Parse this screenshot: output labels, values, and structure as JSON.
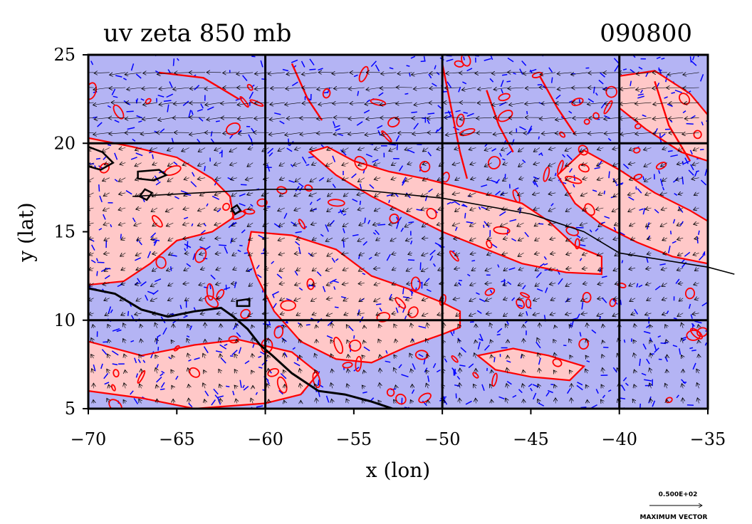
{
  "chart_data": {
    "type": "map",
    "title": "uv zeta 850 mb",
    "date_label": "090800",
    "xlabel": "x (lon)",
    "ylabel": "y (lat)",
    "xlim": [
      -70,
      -35
    ],
    "ylim": [
      5,
      25
    ],
    "x_ticks": [
      {
        "value": -70,
        "label": "−70"
      },
      {
        "value": -65,
        "label": "−65"
      },
      {
        "value": -60,
        "label": "−60"
      },
      {
        "value": -55,
        "label": "−55"
      },
      {
        "value": -50,
        "label": "−50"
      },
      {
        "value": -45,
        "label": "−45"
      },
      {
        "value": -40,
        "label": "−40"
      },
      {
        "value": -35,
        "label": "−35"
      }
    ],
    "y_ticks": [
      {
        "value": 5,
        "label": "5"
      },
      {
        "value": 10,
        "label": "10"
      },
      {
        "value": 15,
        "label": "15"
      },
      {
        "value": 20,
        "label": "20"
      },
      {
        "value": 25,
        "label": "25"
      }
    ],
    "grid_lons": [
      -60,
      -50,
      -40
    ],
    "grid_lats": [
      10,
      20
    ],
    "colors": {
      "positive_fill": "#ffc8c8",
      "negative_fill": "#b4b4f4",
      "positive_contour": "#ff0000",
      "negative_contour": "#0000ff",
      "coast": "#000000"
    },
    "track": [
      [
        -67.5,
        17.0
      ],
      [
        -60,
        17.4
      ],
      [
        -55,
        17.4
      ],
      [
        -50,
        16.9
      ],
      [
        -45,
        16.0
      ],
      [
        -42,
        15.0
      ],
      [
        -40,
        13.8
      ],
      [
        -35,
        13.0
      ],
      [
        -33.5,
        12.6
      ]
    ],
    "vector_legend": {
      "value_label": "0.500E+02",
      "caption": "MAXIMUM VECTOR"
    }
  }
}
